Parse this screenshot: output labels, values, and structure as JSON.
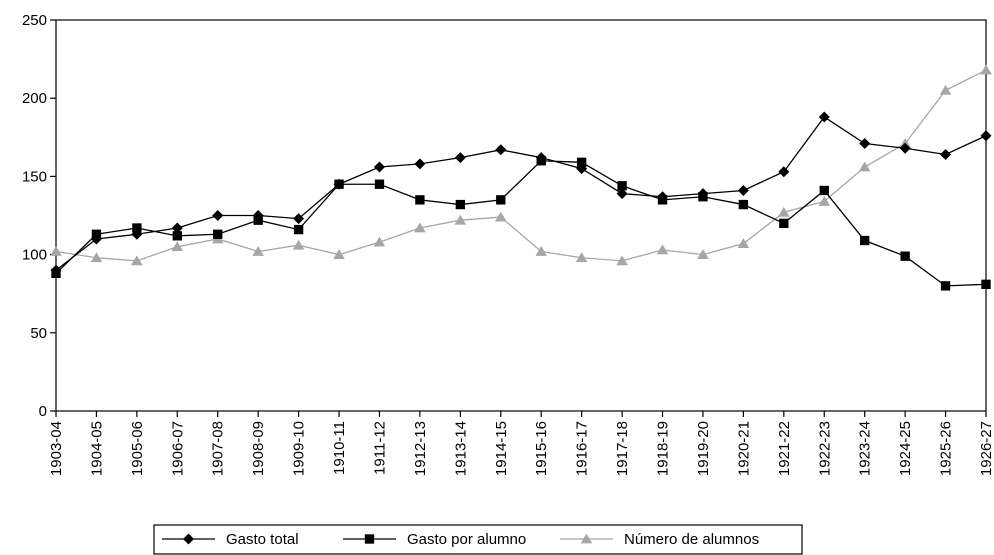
{
  "chart_data": {
    "type": "line",
    "title": "",
    "xlabel": "",
    "ylabel": "",
    "ylim": [
      0,
      250
    ],
    "yticks": [
      0,
      50,
      100,
      150,
      200,
      250
    ],
    "grid": false,
    "legend_position": "bottom",
    "categories": [
      "1903-04",
      "1904-05",
      "1905-06",
      "1906-07",
      "1907-08",
      "1908-09",
      "1909-10",
      "1910-11",
      "1911-12",
      "1912-13",
      "1913-14",
      "1914-15",
      "1915-16",
      "1916-17",
      "1917-18",
      "1918-19",
      "1919-20",
      "1920-21",
      "1921-22",
      "1922-23",
      "1923-24",
      "1924-25",
      "1925-26",
      "1926-27"
    ],
    "series": [
      {
        "name": "Gasto total",
        "marker": "diamond",
        "color": "#000000",
        "values": [
          90,
          110,
          113,
          117,
          125,
          125,
          123,
          145,
          156,
          158,
          162,
          167,
          162,
          155,
          139,
          137,
          139,
          141,
          153,
          188,
          171,
          168,
          164,
          176
        ]
      },
      {
        "name": "Gasto por alumno",
        "marker": "square",
        "color": "#000000",
        "values": [
          88,
          113,
          117,
          112,
          113,
          122,
          116,
          145,
          145,
          135,
          132,
          135,
          160,
          159,
          144,
          135,
          137,
          132,
          120,
          141,
          109,
          99,
          80,
          81
        ]
      },
      {
        "name": "Número de alumnos",
        "marker": "triangle",
        "color": "#a6a6a6",
        "values": [
          102,
          98,
          96,
          105,
          110,
          102,
          106,
          100,
          108,
          117,
          122,
          124,
          102,
          98,
          96,
          103,
          100,
          107,
          127,
          134,
          156,
          171,
          205,
          218
        ]
      }
    ]
  }
}
